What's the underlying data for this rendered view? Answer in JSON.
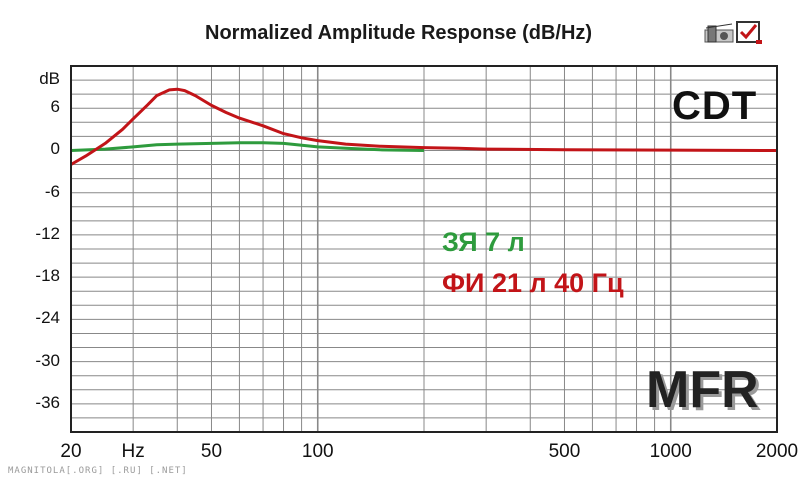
{
  "chart_data": {
    "type": "line",
    "title": "Normalized Amplitude Response (dB/Hz)",
    "xscale": "log",
    "xlim": [
      20,
      2000
    ],
    "ylim": [
      -40,
      12
    ],
    "y_unit_label": "dB",
    "x_unit_label": "Hz",
    "yticks": [
      6,
      0,
      -6,
      -12,
      -18,
      -24,
      -30,
      -36
    ],
    "xticks": [
      20,
      50,
      100,
      500,
      1000,
      2000
    ],
    "grid": true,
    "series": [
      {
        "name": "ЗЯ 7 л",
        "color": "#2e9b3d",
        "x": [
          20,
          25,
          30,
          35,
          40,
          50,
          60,
          70,
          80,
          100,
          120,
          150,
          200
        ],
        "y": [
          0,
          0.2,
          0.5,
          0.8,
          0.9,
          1.0,
          1.1,
          1.1,
          1.0,
          0.5,
          0.3,
          0.1,
          0
        ]
      },
      {
        "name": "ФИ 21 л 40 Гц",
        "color": "#c21418",
        "x": [
          20,
          22,
          25,
          28,
          30,
          33,
          35,
          38,
          40,
          42,
          45,
          50,
          55,
          60,
          70,
          80,
          90,
          100,
          120,
          150,
          200,
          250,
          300,
          500,
          1000,
          2000
        ],
        "y": [
          -2.0,
          -0.8,
          1.0,
          3.0,
          4.5,
          6.5,
          7.8,
          8.6,
          8.7,
          8.5,
          7.8,
          6.4,
          5.4,
          4.6,
          3.5,
          2.4,
          1.8,
          1.4,
          0.9,
          0.6,
          0.4,
          0.3,
          0.2,
          0.1,
          0.05,
          0
        ]
      }
    ]
  },
  "annotations": {
    "brand": "CDT",
    "legend_green": "ЗЯ 7 л",
    "legend_red": "ФИ 21 л 40 Гц",
    "stamp": "MFR"
  },
  "y_tick_labels": [
    "dB",
    "6",
    "0",
    "-6",
    "-12",
    "-18",
    "-24",
    "-30",
    "-36"
  ],
  "x_tick_labels": [
    "20",
    "Hz",
    "50",
    "100",
    "500",
    "1000",
    "2000"
  ],
  "toolbar": {
    "icons": [
      "speaker-graph-icon",
      "checklist-icon"
    ]
  },
  "watermark": "MAGNITOLA[.ORG] [.RU] [.NET]",
  "colors": {
    "grid": "#888888",
    "frame": "#222222",
    "green": "#2e9b3d",
    "red": "#c21418"
  }
}
